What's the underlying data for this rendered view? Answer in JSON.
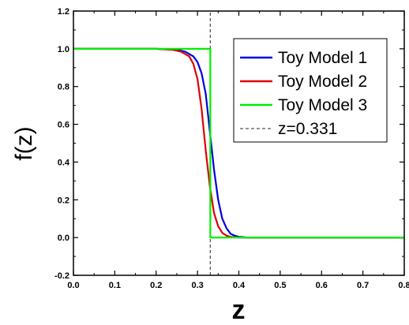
{
  "chart_data": {
    "type": "line",
    "xlabel": "z",
    "ylabel": "f(z)",
    "xlim": [
      0.0,
      0.8
    ],
    "ylim": [
      -0.2,
      1.2
    ],
    "xticks": [
      "0.0",
      "0.1",
      "0.2",
      "0.3",
      "0.4",
      "0.5",
      "0.6",
      "0.7",
      "0.8"
    ],
    "yticks": [
      "-0.2",
      "0.0",
      "0.2",
      "0.4",
      "0.6",
      "0.8",
      "1.0",
      "1.2"
    ],
    "grid": false,
    "legend_position": "top-right",
    "series": [
      {
        "name": "Toy Model 1",
        "color": "#0000dd",
        "style": "solid",
        "x": [
          0.0,
          0.2,
          0.25,
          0.27,
          0.29,
          0.3,
          0.31,
          0.32,
          0.33,
          0.34,
          0.35,
          0.36,
          0.37,
          0.38,
          0.39,
          0.4,
          0.42,
          0.45,
          0.8
        ],
        "y": [
          1.0,
          1.0,
          0.995,
          0.985,
          0.96,
          0.93,
          0.87,
          0.76,
          0.56,
          0.36,
          0.2,
          0.1,
          0.05,
          0.02,
          0.01,
          0.004,
          0.0,
          0.0,
          0.0
        ]
      },
      {
        "name": "Toy Model 2",
        "color": "#dd0000",
        "style": "solid",
        "x": [
          0.0,
          0.2,
          0.24,
          0.26,
          0.28,
          0.29,
          0.3,
          0.31,
          0.32,
          0.33,
          0.34,
          0.35,
          0.36,
          0.37,
          0.38,
          0.4,
          0.45,
          0.8
        ],
        "y": [
          1.0,
          1.0,
          0.995,
          0.985,
          0.96,
          0.92,
          0.84,
          0.68,
          0.46,
          0.27,
          0.13,
          0.06,
          0.025,
          0.01,
          0.004,
          0.0,
          0.0,
          0.0
        ]
      },
      {
        "name": "Toy Model 3",
        "color": "#00ee00",
        "style": "solid",
        "x": [
          0.0,
          0.331,
          0.331,
          0.331,
          0.8
        ],
        "y": [
          1.0,
          1.0,
          0.3,
          0.0,
          0.0
        ]
      },
      {
        "name": "z=0.331",
        "color": "#555555",
        "style": "dashed",
        "x": [
          0.331,
          0.331
        ],
        "y": [
          -0.2,
          1.2
        ]
      }
    ]
  }
}
